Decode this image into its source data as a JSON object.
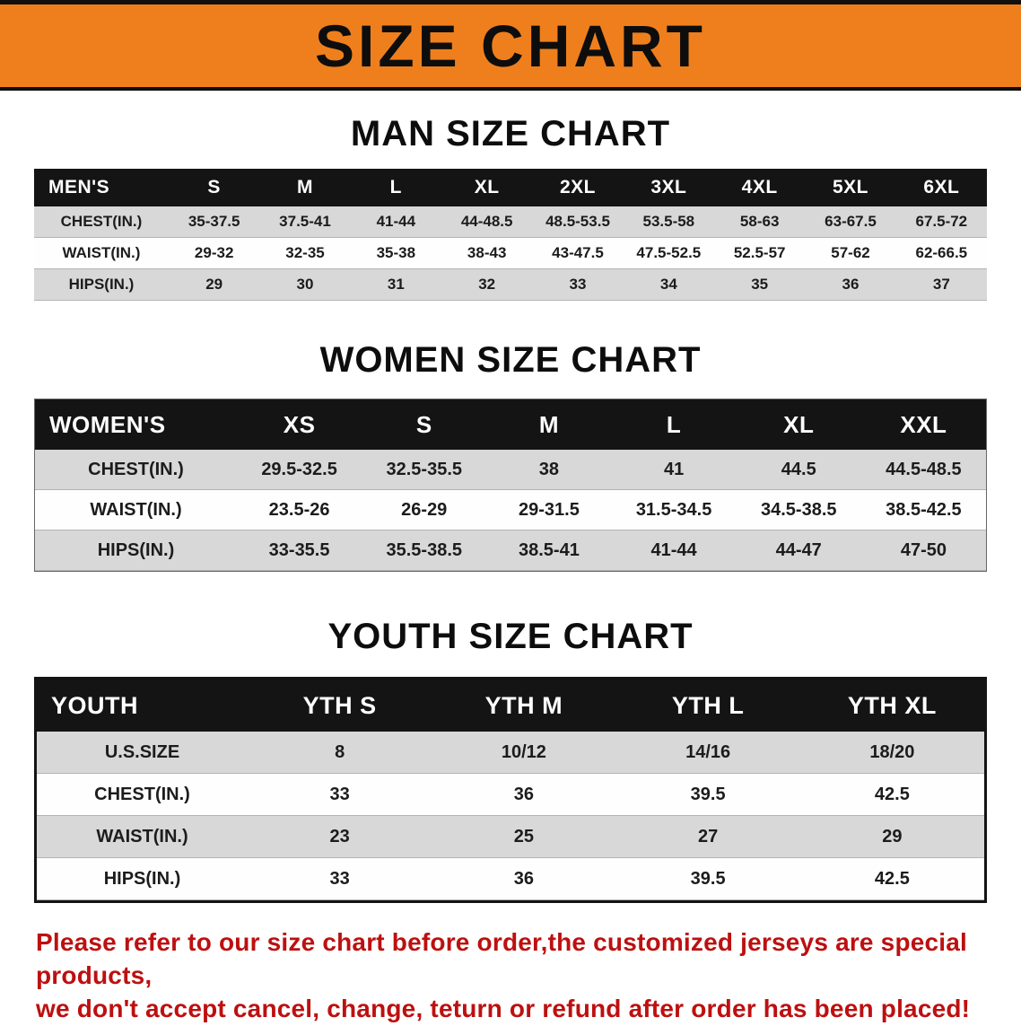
{
  "banner": {
    "title": "SIZE CHART"
  },
  "colors": {
    "banner_bg": "#ef7f1c",
    "header_bg": "#141414",
    "row_alt": "#d8d8d8",
    "note_red": "#bd1010"
  },
  "sections": [
    {
      "heading": "MAN SIZE CHART",
      "table": {
        "header": [
          "MEN'S",
          "S",
          "M",
          "L",
          "XL",
          "2XL",
          "3XL",
          "4XL",
          "5XL",
          "6XL"
        ],
        "rows": [
          [
            "CHEST(IN.)",
            "35-37.5",
            "37.5-41",
            "41-44",
            "44-48.5",
            "48.5-53.5",
            "53.5-58",
            "58-63",
            "63-67.5",
            "67.5-72"
          ],
          [
            "WAIST(IN.)",
            "29-32",
            "32-35",
            "35-38",
            "38-43",
            "43-47.5",
            "47.5-52.5",
            "52.5-57",
            "57-62",
            "62-66.5"
          ],
          [
            "HIPS(IN.)",
            "29",
            "30",
            "31",
            "32",
            "33",
            "34",
            "35",
            "36",
            "37"
          ]
        ]
      }
    },
    {
      "heading": "WOMEN SIZE CHART",
      "table": {
        "header": [
          "WOMEN'S",
          "XS",
          "S",
          "M",
          "L",
          "XL",
          "XXL"
        ],
        "rows": [
          [
            "CHEST(IN.)",
            "29.5-32.5",
            "32.5-35.5",
            "38",
            "41",
            "44.5",
            "44.5-48.5"
          ],
          [
            "WAIST(IN.)",
            "23.5-26",
            "26-29",
            "29-31.5",
            "31.5-34.5",
            "34.5-38.5",
            "38.5-42.5"
          ],
          [
            "HIPS(IN.)",
            "33-35.5",
            "35.5-38.5",
            "38.5-41",
            "41-44",
            "44-47",
            "47-50"
          ]
        ]
      }
    },
    {
      "heading": "YOUTH SIZE CHART",
      "table": {
        "header": [
          "YOUTH",
          "YTH S",
          "YTH M",
          "YTH L",
          "YTH XL"
        ],
        "rows": [
          [
            "U.S.SIZE",
            "8",
            "10/12",
            "14/16",
            "18/20"
          ],
          [
            "CHEST(IN.)",
            "33",
            "36",
            "39.5",
            "42.5"
          ],
          [
            "WAIST(IN.)",
            "23",
            "25",
            "27",
            "29"
          ],
          [
            "HIPS(IN.)",
            "33",
            "36",
            "39.5",
            "42.5"
          ]
        ]
      }
    }
  ],
  "note": {
    "line1": "Please refer to our size chart before order,the customized jerseys are special products,",
    "line2": "we don't accept cancel, change, teturn or refund after order has been placed!"
  }
}
